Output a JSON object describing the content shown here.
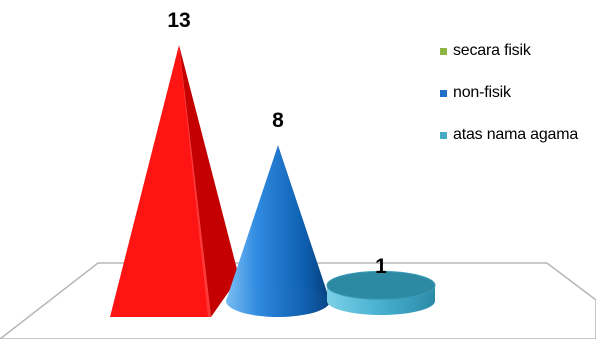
{
  "chart_data": {
    "type": "bar",
    "categories": [
      "secara fisik",
      "non-fisik",
      "atas nama agama"
    ],
    "values": [
      13,
      8,
      1
    ],
    "data_labels": [
      "13",
      "8",
      "1"
    ],
    "title": "",
    "xlabel": "",
    "ylabel": "",
    "ylim": [
      0,
      13
    ],
    "grid": false,
    "legend_position": "top-right",
    "shape": "3d-pyramid-cone",
    "series_colors": [
      "#ff1010",
      "#1e74c9",
      "#45b4cf"
    ],
    "legend": [
      {
        "label": "secara fisik",
        "color": "#8db542"
      },
      {
        "label": "non-fisik",
        "color": "#1f6fc4"
      },
      {
        "label": "atas nama agama",
        "color": "#46aac5"
      }
    ]
  }
}
